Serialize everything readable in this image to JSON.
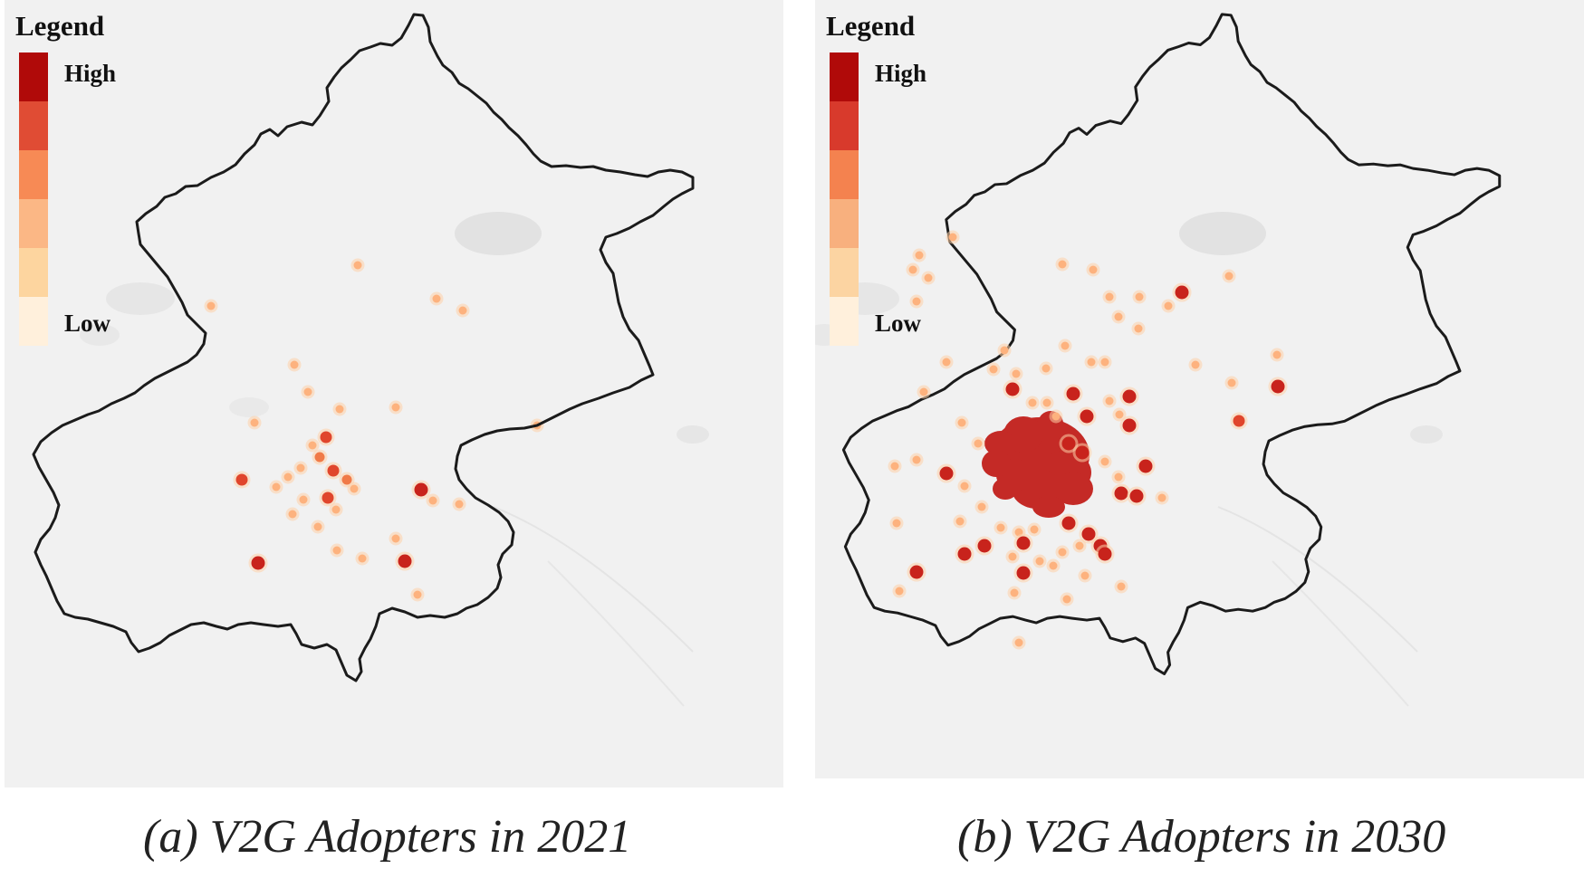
{
  "panels": [
    {
      "id": "a",
      "legend": {
        "title": "Legend",
        "high_label": "High",
        "low_label": "Low"
      },
      "caption": "(a) V2G Adopters in 2021",
      "hotspots": [
        {
          "x": 390,
          "y": 293,
          "v": 1
        },
        {
          "x": 228,
          "y": 338,
          "v": 1
        },
        {
          "x": 477,
          "y": 330,
          "v": 1
        },
        {
          "x": 506,
          "y": 343,
          "v": 1
        },
        {
          "x": 320,
          "y": 403,
          "v": 1
        },
        {
          "x": 335,
          "y": 433,
          "v": 1
        },
        {
          "x": 432,
          "y": 450,
          "v": 1
        },
        {
          "x": 370,
          "y": 452,
          "v": 1
        },
        {
          "x": 276,
          "y": 467,
          "v": 1
        },
        {
          "x": 588,
          "y": 470,
          "v": 1
        },
        {
          "x": 355,
          "y": 483,
          "v": 3
        },
        {
          "x": 340,
          "y": 492,
          "v": 1
        },
        {
          "x": 348,
          "y": 505,
          "v": 2
        },
        {
          "x": 327,
          "y": 517,
          "v": 1
        },
        {
          "x": 363,
          "y": 520,
          "v": 3
        },
        {
          "x": 378,
          "y": 530,
          "v": 2
        },
        {
          "x": 262,
          "y": 530,
          "v": 3
        },
        {
          "x": 313,
          "y": 527,
          "v": 1
        },
        {
          "x": 300,
          "y": 538,
          "v": 1
        },
        {
          "x": 386,
          "y": 540,
          "v": 1
        },
        {
          "x": 460,
          "y": 541,
          "v": 4
        },
        {
          "x": 357,
          "y": 550,
          "v": 3
        },
        {
          "x": 330,
          "y": 552,
          "v": 1
        },
        {
          "x": 473,
          "y": 553,
          "v": 1
        },
        {
          "x": 502,
          "y": 557,
          "v": 1
        },
        {
          "x": 366,
          "y": 563,
          "v": 1
        },
        {
          "x": 318,
          "y": 568,
          "v": 1
        },
        {
          "x": 346,
          "y": 582,
          "v": 1
        },
        {
          "x": 432,
          "y": 595,
          "v": 1
        },
        {
          "x": 367,
          "y": 608,
          "v": 1
        },
        {
          "x": 395,
          "y": 617,
          "v": 1
        },
        {
          "x": 280,
          "y": 622,
          "v": 4
        },
        {
          "x": 442,
          "y": 620,
          "v": 4
        },
        {
          "x": 456,
          "y": 657,
          "v": 1
        }
      ]
    },
    {
      "id": "b",
      "legend": {
        "title": "Legend",
        "high_label": "High",
        "low_label": "Low"
      },
      "caption": "(b) V2G Adopters in 2030",
      "hotspots": [
        {
          "x": 162,
          "y": 262,
          "v": 1
        },
        {
          "x": 125,
          "y": 282,
          "v": 1
        },
        {
          "x": 118,
          "y": 298,
          "v": 1
        },
        {
          "x": 135,
          "y": 307,
          "v": 1
        },
        {
          "x": 122,
          "y": 333,
          "v": 1
        },
        {
          "x": 283,
          "y": 292,
          "v": 1
        },
        {
          "x": 317,
          "y": 298,
          "v": 1
        },
        {
          "x": 467,
          "y": 305,
          "v": 1
        },
        {
          "x": 415,
          "y": 323,
          "v": 4
        },
        {
          "x": 400,
          "y": 338,
          "v": 1
        },
        {
          "x": 335,
          "y": 328,
          "v": 1
        },
        {
          "x": 368,
          "y": 328,
          "v": 1
        },
        {
          "x": 345,
          "y": 350,
          "v": 1
        },
        {
          "x": 367,
          "y": 363,
          "v": 1
        },
        {
          "x": 286,
          "y": 382,
          "v": 1
        },
        {
          "x": 315,
          "y": 400,
          "v": 1
        },
        {
          "x": 330,
          "y": 400,
          "v": 1
        },
        {
          "x": 265,
          "y": 407,
          "v": 1
        },
        {
          "x": 219,
          "y": 387,
          "v": 1
        },
        {
          "x": 207,
          "y": 408,
          "v": 1
        },
        {
          "x": 232,
          "y": 413,
          "v": 1
        },
        {
          "x": 155,
          "y": 400,
          "v": 1
        },
        {
          "x": 430,
          "y": 403,
          "v": 1
        },
        {
          "x": 520,
          "y": 392,
          "v": 1
        },
        {
          "x": 521,
          "y": 427,
          "v": 4
        },
        {
          "x": 470,
          "y": 423,
          "v": 1
        },
        {
          "x": 130,
          "y": 433,
          "v": 1
        },
        {
          "x": 228,
          "y": 430,
          "v": 4
        },
        {
          "x": 295,
          "y": 435,
          "v": 4
        },
        {
          "x": 357,
          "y": 438,
          "v": 4
        },
        {
          "x": 335,
          "y": 443,
          "v": 1
        },
        {
          "x": 250,
          "y": 445,
          "v": 1
        },
        {
          "x": 266,
          "y": 445,
          "v": 1
        },
        {
          "x": 276,
          "y": 460,
          "v": 1
        },
        {
          "x": 310,
          "y": 460,
          "v": 4
        },
        {
          "x": 346,
          "y": 458,
          "v": 1
        },
        {
          "x": 357,
          "y": 470,
          "v": 4
        },
        {
          "x": 478,
          "y": 465,
          "v": 3
        },
        {
          "x": 172,
          "y": 467,
          "v": 1
        },
        {
          "x": 190,
          "y": 490,
          "v": 1
        },
        {
          "x": 290,
          "y": 490,
          "v": 4
        },
        {
          "x": 305,
          "y": 500,
          "v": 4
        },
        {
          "x": 98,
          "y": 515,
          "v": 1
        },
        {
          "x": 122,
          "y": 508,
          "v": 1
        },
        {
          "x": 155,
          "y": 523,
          "v": 4
        },
        {
          "x": 175,
          "y": 537,
          "v": 1
        },
        {
          "x": 330,
          "y": 510,
          "v": 1
        },
        {
          "x": 345,
          "y": 527,
          "v": 1
        },
        {
          "x": 375,
          "y": 515,
          "v": 4
        },
        {
          "x": 348,
          "y": 545,
          "v": 4
        },
        {
          "x": 365,
          "y": 548,
          "v": 4
        },
        {
          "x": 393,
          "y": 550,
          "v": 1
        },
        {
          "x": 194,
          "y": 560,
          "v": 1
        },
        {
          "x": 170,
          "y": 576,
          "v": 1
        },
        {
          "x": 100,
          "y": 578,
          "v": 1
        },
        {
          "x": 215,
          "y": 583,
          "v": 1
        },
        {
          "x": 235,
          "y": 588,
          "v": 1
        },
        {
          "x": 252,
          "y": 585,
          "v": 1
        },
        {
          "x": 290,
          "y": 578,
          "v": 4
        },
        {
          "x": 312,
          "y": 590,
          "v": 4
        },
        {
          "x": 325,
          "y": 603,
          "v": 4
        },
        {
          "x": 302,
          "y": 603,
          "v": 1
        },
        {
          "x": 283,
          "y": 610,
          "v": 1
        },
        {
          "x": 240,
          "y": 600,
          "v": 4
        },
        {
          "x": 197,
          "y": 603,
          "v": 4
        },
        {
          "x": 175,
          "y": 612,
          "v": 4
        },
        {
          "x": 228,
          "y": 615,
          "v": 1
        },
        {
          "x": 258,
          "y": 620,
          "v": 1
        },
        {
          "x": 273,
          "y": 625,
          "v": 1
        },
        {
          "x": 330,
          "y": 612,
          "v": 4
        },
        {
          "x": 308,
          "y": 636,
          "v": 1
        },
        {
          "x": 122,
          "y": 632,
          "v": 4
        },
        {
          "x": 240,
          "y": 633,
          "v": 4
        },
        {
          "x": 103,
          "y": 653,
          "v": 1
        },
        {
          "x": 348,
          "y": 648,
          "v": 1
        },
        {
          "x": 230,
          "y": 655,
          "v": 1
        },
        {
          "x": 288,
          "y": 662,
          "v": 1
        },
        {
          "x": -12,
          "y": 658,
          "v": 1
        },
        {
          "x": 235,
          "y": 710,
          "v": 1
        }
      ],
      "blobs": [
        {
          "x": 258,
          "y": 503,
          "rx": 55,
          "ry": 42
        },
        {
          "x": 240,
          "y": 480,
          "rx": 22,
          "ry": 20
        },
        {
          "x": 215,
          "y": 490,
          "rx": 18,
          "ry": 14
        },
        {
          "x": 285,
          "y": 522,
          "rx": 30,
          "ry": 24
        },
        {
          "x": 255,
          "y": 540,
          "rx": 28,
          "ry": 22
        },
        {
          "x": 230,
          "y": 525,
          "rx": 20,
          "ry": 18
        },
        {
          "x": 210,
          "y": 512,
          "rx": 16,
          "ry": 15
        },
        {
          "x": 295,
          "y": 540,
          "rx": 22,
          "ry": 18
        },
        {
          "x": 270,
          "y": 468,
          "rx": 14,
          "ry": 14
        },
        {
          "x": 220,
          "y": 540,
          "rx": 14,
          "ry": 12
        },
        {
          "x": 268,
          "y": 560,
          "rx": 18,
          "ry": 12
        }
      ]
    }
  ]
}
